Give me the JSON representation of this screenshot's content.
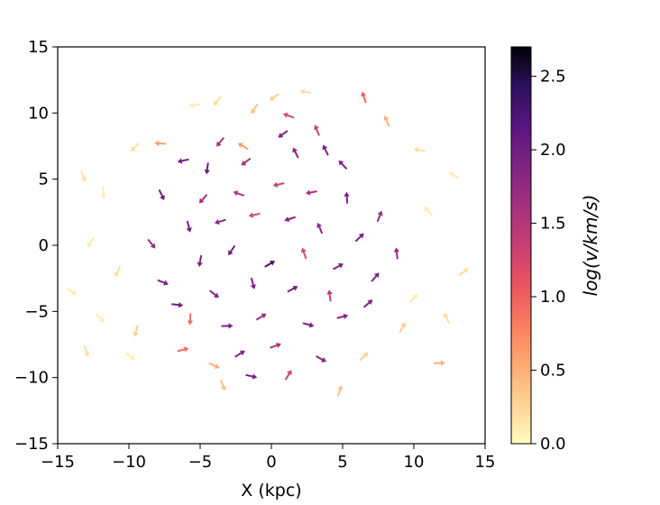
{
  "chart_data": {
    "type": "quiver",
    "xlabel": "X (kpc)",
    "ylabel": "",
    "xlim": [
      -15,
      15
    ],
    "ylim": [
      -15,
      15
    ],
    "x_ticks": [
      "−15",
      "−10",
      "−5",
      "0",
      "5",
      "10",
      "15"
    ],
    "y_ticks": [
      "−15",
      "−10",
      "−5",
      "0",
      "5",
      "10",
      "15"
    ],
    "grid": false,
    "colorbar": {
      "label": "log(v/km/s)",
      "colormap": "magma_r",
      "range": [
        0.0,
        2.7
      ],
      "ticks": [
        "0.0",
        "0.5",
        "1.0",
        "1.5",
        "2.0",
        "2.5"
      ]
    },
    "arrows": [
      [
        2.4,
        11.6,
        0.2
      ],
      [
        -1.2,
        10.3,
        0.4
      ],
      [
        1.2,
        9.8,
        1.2
      ],
      [
        3.2,
        8.7,
        1.3
      ],
      [
        -3.6,
        7.8,
        1.6
      ],
      [
        0.8,
        8.4,
        1.9
      ],
      [
        3.8,
        7.2,
        1.9
      ],
      [
        -6.2,
        6.4,
        1.9
      ],
      [
        -4.5,
        5.8,
        2.0
      ],
      [
        -1.8,
        6.3,
        1.6
      ],
      [
        1.7,
        7.0,
        1.8
      ],
      [
        5.0,
        6.1,
        1.9
      ],
      [
        -7.7,
        3.8,
        2.0
      ],
      [
        -4.8,
        3.5,
        1.6
      ],
      [
        -2.3,
        3.9,
        1.5
      ],
      [
        0.5,
        4.6,
        1.3
      ],
      [
        2.8,
        4.0,
        1.6
      ],
      [
        5.3,
        3.6,
        1.9
      ],
      [
        7.6,
        2.2,
        1.7
      ],
      [
        -8.4,
        0.1,
        1.7
      ],
      [
        -5.8,
        1.4,
        2.0
      ],
      [
        -3.6,
        1.8,
        1.8
      ],
      [
        -1.2,
        2.3,
        1.2
      ],
      [
        1.3,
        2.0,
        1.9
      ],
      [
        3.4,
        1.3,
        1.8
      ],
      [
        6.2,
        0.6,
        1.9
      ],
      [
        8.8,
        -0.6,
        1.7
      ],
      [
        -7.6,
        -2.8,
        1.9
      ],
      [
        -5.0,
        -1.2,
        1.9
      ],
      [
        -2.8,
        -0.4,
        2.0
      ],
      [
        -0.1,
        -1.4,
        2.3
      ],
      [
        2.3,
        -0.6,
        1.2
      ],
      [
        4.7,
        -1.6,
        1.9
      ],
      [
        7.3,
        -2.4,
        1.9
      ],
      [
        -6.6,
        -4.5,
        2.0
      ],
      [
        -4.0,
        -3.7,
        1.8
      ],
      [
        -1.3,
        -2.9,
        1.9
      ],
      [
        1.5,
        -3.3,
        2.0
      ],
      [
        4.1,
        -3.8,
        1.4
      ],
      [
        6.8,
        -4.4,
        1.9
      ],
      [
        -5.7,
        -5.6,
        0.9
      ],
      [
        -3.1,
        -6.1,
        1.9
      ],
      [
        -0.7,
        -5.4,
        1.7
      ],
      [
        2.6,
        -6.0,
        1.9
      ],
      [
        5.0,
        -5.4,
        1.8
      ],
      [
        -2.2,
        -8.2,
        1.9
      ],
      [
        0.3,
        -7.6,
        1.6
      ],
      [
        3.5,
        -8.6,
        1.9
      ],
      [
        -1.4,
        -9.9,
        1.9
      ],
      [
        1.2,
        -9.8,
        1.3
      ],
      [
        -9.6,
        7.4,
        0.2
      ],
      [
        -7.8,
        7.7,
        0.6
      ],
      [
        -11.8,
        4.0,
        0.1
      ],
      [
        -13.2,
        5.2,
        0.2
      ],
      [
        -12.7,
        0.2,
        0.1
      ],
      [
        -10.8,
        -2.0,
        0.2
      ],
      [
        -14.0,
        -3.5,
        0.1
      ],
      [
        -12.0,
        -5.5,
        0.1
      ],
      [
        -9.5,
        -6.5,
        0.3
      ],
      [
        -13.0,
        -8.0,
        0.2
      ],
      [
        -6.2,
        -7.9,
        0.9
      ],
      [
        -4.0,
        -9.1,
        0.5
      ],
      [
        -3.4,
        -10.6,
        0.4
      ],
      [
        -9.9,
        -8.4,
        0.1
      ],
      [
        10.4,
        7.2,
        0.2
      ],
      [
        8.1,
        9.4,
        0.5
      ],
      [
        6.5,
        11.2,
        1.0
      ],
      [
        12.8,
        5.3,
        0.1
      ],
      [
        11.0,
        2.6,
        0.1
      ],
      [
        13.5,
        -2.0,
        0.2
      ],
      [
        10.0,
        -4.0,
        0.1
      ],
      [
        12.3,
        -5.5,
        0.2
      ],
      [
        9.2,
        -6.2,
        0.3
      ],
      [
        11.8,
        -8.9,
        0.5
      ],
      [
        6.5,
        -8.4,
        0.3
      ],
      [
        4.8,
        -11.0,
        0.4
      ],
      [
        -5.4,
        10.6,
        0.1
      ],
      [
        -2.0,
        7.5,
        0.6
      ],
      [
        -3.8,
        10.9,
        0.2
      ],
      [
        0.2,
        11.2,
        0.3
      ]
    ]
  }
}
